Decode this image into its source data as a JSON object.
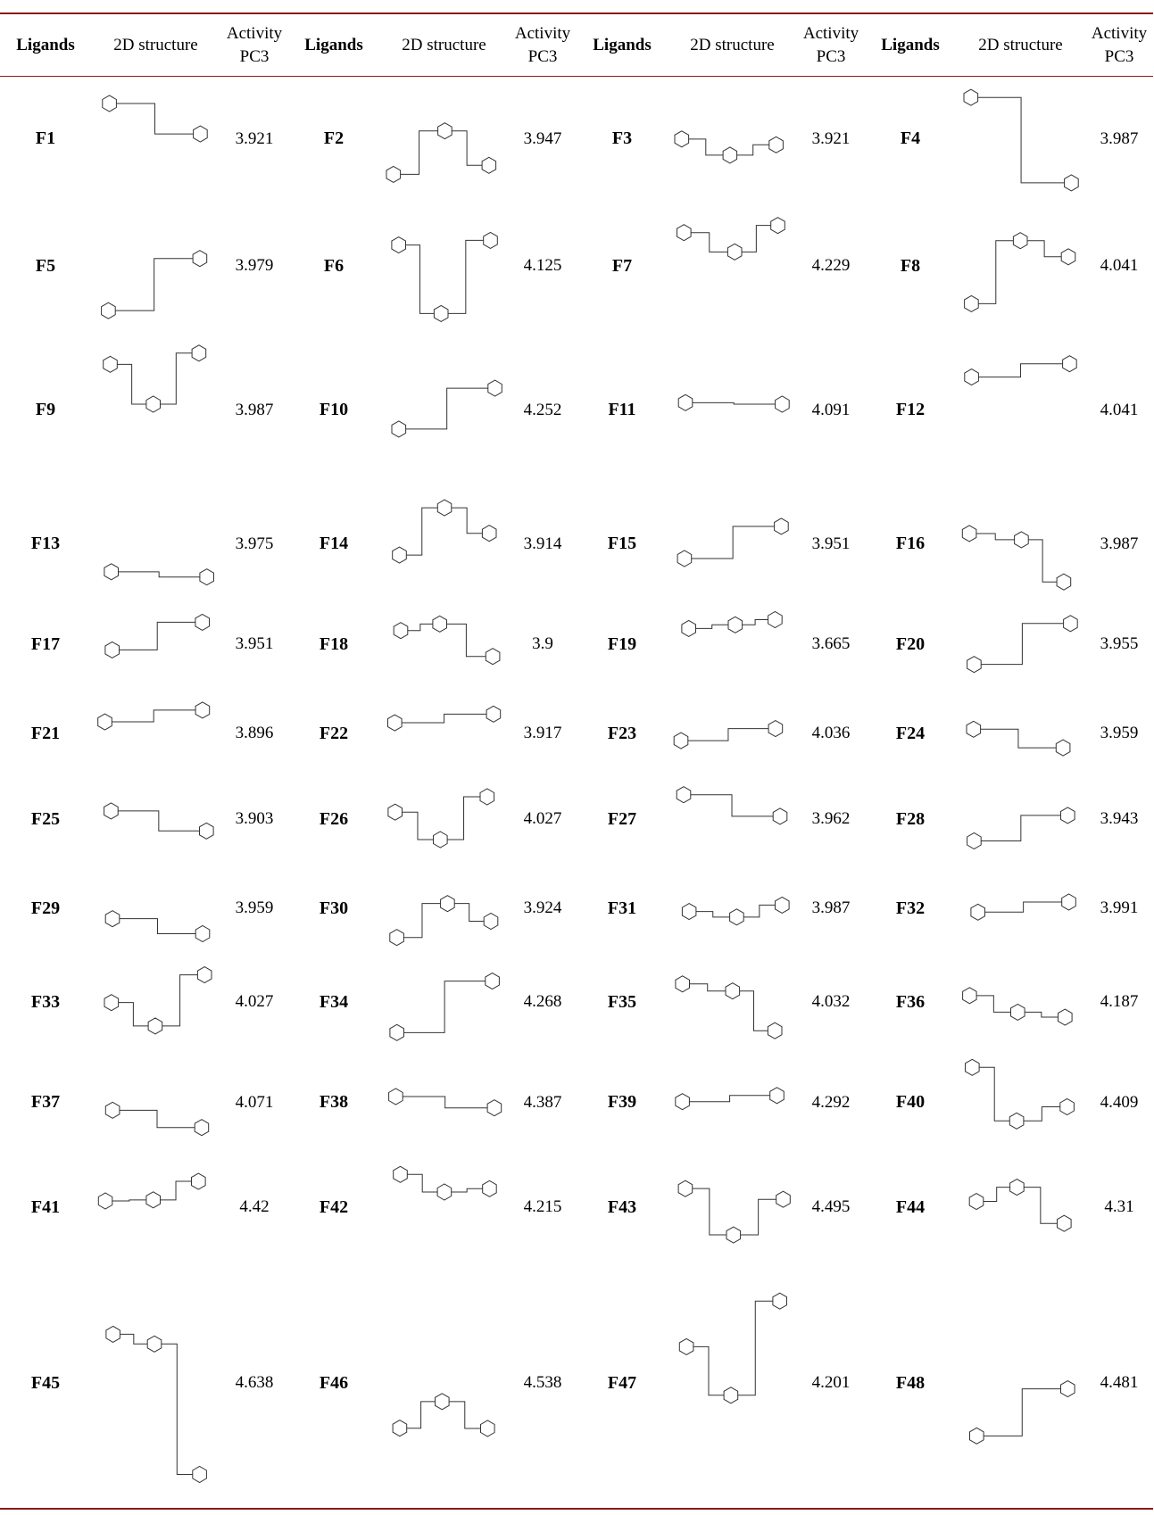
{
  "table": {
    "header": [
      "Ligands",
      "2D structure",
      "Activity PC3"
    ],
    "entries": [
      {
        "ligand": "F1",
        "activity": 3.921
      },
      {
        "ligand": "F2",
        "activity": 3.947
      },
      {
        "ligand": "F3",
        "activity": 3.921
      },
      {
        "ligand": "F4",
        "activity": 3.987
      },
      {
        "ligand": "F5",
        "activity": 3.979
      },
      {
        "ligand": "F6",
        "activity": 4.125
      },
      {
        "ligand": "F7",
        "activity": 4.229
      },
      {
        "ligand": "F8",
        "activity": 4.041
      },
      {
        "ligand": "F9",
        "activity": 3.987
      },
      {
        "ligand": "F10",
        "activity": 4.252
      },
      {
        "ligand": "F11",
        "activity": 4.091
      },
      {
        "ligand": "F12",
        "activity": 4.041
      },
      {
        "ligand": "F13",
        "activity": 3.975
      },
      {
        "ligand": "F14",
        "activity": 3.914
      },
      {
        "ligand": "F15",
        "activity": 3.951
      },
      {
        "ligand": "F16",
        "activity": 3.987
      },
      {
        "ligand": "F17",
        "activity": 3.951
      },
      {
        "ligand": "F18",
        "activity": 3.9
      },
      {
        "ligand": "F19",
        "activity": 3.665
      },
      {
        "ligand": "F20",
        "activity": 3.955
      },
      {
        "ligand": "F21",
        "activity": 3.896
      },
      {
        "ligand": "F22",
        "activity": 3.917
      },
      {
        "ligand": "F23",
        "activity": 4.036
      },
      {
        "ligand": "F24",
        "activity": 3.959
      },
      {
        "ligand": "F25",
        "activity": 3.903
      },
      {
        "ligand": "F26",
        "activity": 4.027
      },
      {
        "ligand": "F27",
        "activity": 3.962
      },
      {
        "ligand": "F28",
        "activity": 3.943
      },
      {
        "ligand": "F29",
        "activity": 3.959
      },
      {
        "ligand": "F30",
        "activity": 3.924
      },
      {
        "ligand": "F31",
        "activity": 3.987
      },
      {
        "ligand": "F32",
        "activity": 3.991
      },
      {
        "ligand": "F33",
        "activity": 4.027
      },
      {
        "ligand": "F34",
        "activity": 4.268
      },
      {
        "ligand": "F35",
        "activity": 4.032
      },
      {
        "ligand": "F36",
        "activity": 4.187
      },
      {
        "ligand": "F37",
        "activity": 4.071
      },
      {
        "ligand": "F38",
        "activity": 4.387
      },
      {
        "ligand": "F39",
        "activity": 4.292
      },
      {
        "ligand": "F40",
        "activity": 4.409
      },
      {
        "ligand": "F41",
        "activity": 4.42
      },
      {
        "ligand": "F42",
        "activity": 4.215
      },
      {
        "ligand": "F43",
        "activity": 4.495
      },
      {
        "ligand": "F44",
        "activity": 4.31
      },
      {
        "ligand": "F45",
        "activity": 4.638
      },
      {
        "ligand": "F46",
        "activity": 4.538
      },
      {
        "ligand": "F47",
        "activity": 4.201
      },
      {
        "ligand": "F48",
        "activity": 4.481
      }
    ]
  }
}
